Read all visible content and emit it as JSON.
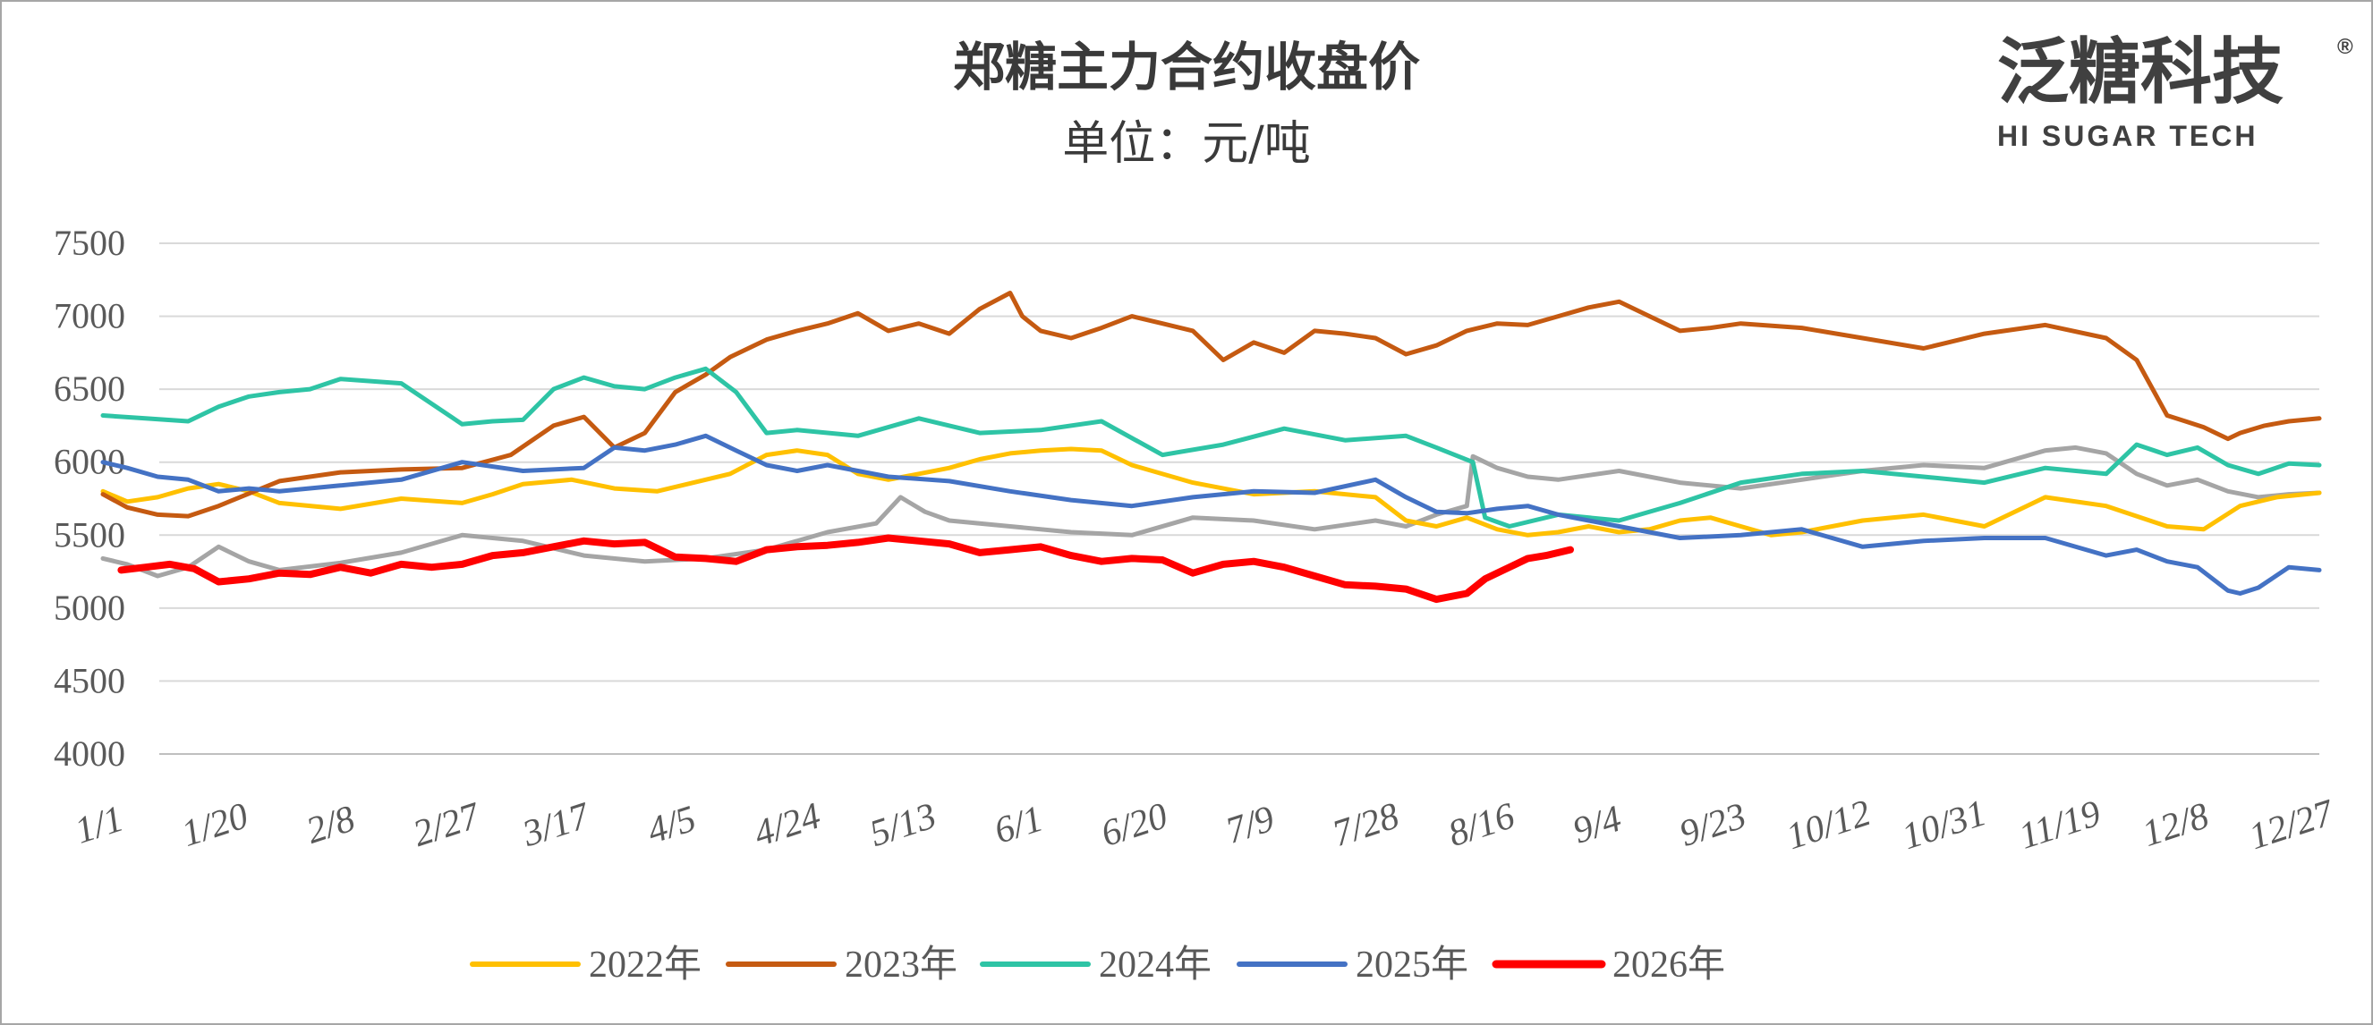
{
  "logo": {
    "cn": "泛糖科技",
    "en": "HI SUGAR TECH",
    "mark": "®"
  },
  "chart_data": {
    "type": "line",
    "title": "郑糖主力合约收盘价",
    "subtitle": "单位：元/吨",
    "xlabel": "",
    "ylabel": "",
    "ylim": [
      4000,
      7500
    ],
    "yticks": [
      4000,
      4500,
      5000,
      5500,
      6000,
      6500,
      7000,
      7500
    ],
    "xlim": [
      1,
      365
    ],
    "grid": true,
    "legend_position": "bottom",
    "x_ticks": [
      {
        "label": "1/1",
        "day": 1
      },
      {
        "label": "1/20",
        "day": 20
      },
      {
        "label": "2/8",
        "day": 39
      },
      {
        "label": "2/27",
        "day": 58
      },
      {
        "label": "3/17",
        "day": 76
      },
      {
        "label": "4/5",
        "day": 95
      },
      {
        "label": "4/24",
        "day": 114
      },
      {
        "label": "5/13",
        "day": 133
      },
      {
        "label": "6/1",
        "day": 152
      },
      {
        "label": "6/20",
        "day": 171
      },
      {
        "label": "7/9",
        "day": 190
      },
      {
        "label": "7/28",
        "day": 209
      },
      {
        "label": "8/16",
        "day": 228
      },
      {
        "label": "9/4",
        "day": 247
      },
      {
        "label": "9/23",
        "day": 266
      },
      {
        "label": "10/12",
        "day": 285
      },
      {
        "label": "10/31",
        "day": 304
      },
      {
        "label": "11/19",
        "day": 323
      },
      {
        "label": "12/8",
        "day": 342
      },
      {
        "label": "12/27",
        "day": 361
      }
    ],
    "series": [
      {
        "name": "2022年",
        "color": "#ffc000",
        "x": [
          1,
          5,
          10,
          15,
          20,
          25,
          30,
          40,
          50,
          60,
          65,
          70,
          78,
          85,
          92,
          98,
          104,
          110,
          115,
          120,
          125,
          130,
          135,
          140,
          145,
          150,
          155,
          160,
          165,
          170,
          180,
          190,
          200,
          210,
          215,
          220,
          225,
          230,
          235,
          240,
          245,
          250,
          255,
          260,
          265,
          270,
          275,
          280,
          290,
          300,
          310,
          320,
          330,
          340,
          346,
          352,
          358,
          365
        ],
        "values": [
          5800,
          5730,
          5760,
          5820,
          5850,
          5800,
          5720,
          5680,
          5750,
          5720,
          5780,
          5850,
          5880,
          5820,
          5800,
          5860,
          5920,
          6050,
          6080,
          6050,
          5920,
          5880,
          5920,
          5960,
          6020,
          6060,
          6080,
          6090,
          6080,
          5980,
          5860,
          5780,
          5800,
          5760,
          5600,
          5560,
          5620,
          5540,
          5500,
          5520,
          5560,
          5520,
          5540,
          5600,
          5620,
          5560,
          5500,
          5520,
          5600,
          5640,
          5560,
          5760,
          5700,
          5560,
          5540,
          5700,
          5760,
          5790
        ]
      },
      {
        "name": "2023年",
        "color": "#c55a11",
        "x": [
          1,
          5,
          10,
          15,
          20,
          30,
          40,
          50,
          60,
          68,
          75,
          80,
          85,
          90,
          95,
          100,
          104,
          110,
          115,
          120,
          125,
          130,
          135,
          140,
          145,
          150,
          152,
          155,
          160,
          165,
          170,
          175,
          180,
          185,
          190,
          195,
          200,
          205,
          210,
          215,
          220,
          225,
          230,
          235,
          240,
          245,
          250,
          255,
          260,
          265,
          270,
          280,
          290,
          300,
          310,
          320,
          330,
          335,
          340,
          343,
          346,
          350,
          352,
          356,
          360,
          365
        ],
        "values": [
          5780,
          5690,
          5640,
          5630,
          5700,
          5870,
          5930,
          5950,
          5960,
          6050,
          6250,
          6310,
          6100,
          6200,
          6480,
          6600,
          6720,
          6840,
          6900,
          6950,
          7020,
          6900,
          6950,
          6880,
          7050,
          7160,
          7000,
          6900,
          6850,
          6920,
          7000,
          6950,
          6900,
          6700,
          6820,
          6750,
          6900,
          6880,
          6850,
          6740,
          6800,
          6900,
          6950,
          6940,
          7000,
          7060,
          7100,
          7000,
          6900,
          6920,
          6950,
          6920,
          6850,
          6780,
          6880,
          6940,
          6850,
          6700,
          6320,
          6280,
          6240,
          6160,
          6200,
          6250,
          6280,
          6300
        ]
      },
      {
        "name": "2024年",
        "color": "#2ec4a5",
        "x": [
          1,
          8,
          15,
          20,
          25,
          30,
          35,
          40,
          50,
          60,
          65,
          70,
          75,
          80,
          85,
          90,
          95,
          100,
          105,
          110,
          115,
          125,
          135,
          145,
          155,
          165,
          175,
          185,
          195,
          205,
          215,
          220,
          226,
          228,
          232,
          240,
          250,
          260,
          270,
          280,
          290,
          300,
          310,
          320,
          330,
          335,
          340,
          345,
          350,
          355,
          360,
          365
        ],
        "values": [
          6320,
          6300,
          6280,
          6380,
          6450,
          6480,
          6500,
          6570,
          6540,
          6260,
          6280,
          6290,
          6500,
          6580,
          6520,
          6500,
          6580,
          6640,
          6480,
          6200,
          6220,
          6180,
          6300,
          6200,
          6220,
          6280,
          6050,
          6120,
          6230,
          6150,
          6180,
          6100,
          6000,
          5620,
          5560,
          5640,
          5600,
          5720,
          5860,
          5920,
          5940,
          5900,
          5860,
          5960,
          5920,
          6120,
          6050,
          6100,
          5980,
          5920,
          5990,
          5980
        ]
      },
      {
        "name": "2025年",
        "color": "#4472c4",
        "x": [
          1,
          5,
          10,
          15,
          20,
          25,
          30,
          40,
          50,
          60,
          70,
          80,
          85,
          90,
          95,
          100,
          105,
          110,
          115,
          120,
          130,
          140,
          150,
          160,
          170,
          180,
          190,
          200,
          210,
          215,
          220,
          225,
          230,
          235,
          240,
          250,
          260,
          270,
          280,
          290,
          300,
          310,
          320,
          330,
          335,
          340,
          345,
          350,
          352,
          355,
          360,
          365
        ],
        "values": [
          6000,
          5960,
          5900,
          5880,
          5800,
          5820,
          5800,
          5840,
          5880,
          6000,
          5940,
          5960,
          6100,
          6080,
          6120,
          6180,
          6080,
          5980,
          5940,
          5980,
          5900,
          5870,
          5800,
          5740,
          5700,
          5760,
          5800,
          5790,
          5880,
          5760,
          5660,
          5650,
          5680,
          5700,
          5640,
          5560,
          5480,
          5500,
          5540,
          5420,
          5460,
          5480,
          5480,
          5360,
          5400,
          5320,
          5280,
          5120,
          5100,
          5140,
          5280,
          5260
        ]
      },
      {
        "name": "2026年",
        "color": "#ff0000",
        "x": [
          4,
          8,
          12,
          16,
          20,
          25,
          30,
          35,
          40,
          45,
          50,
          55,
          60,
          65,
          70,
          75,
          80,
          85,
          90,
          95,
          100,
          105,
          110,
          115,
          120,
          125,
          130,
          135,
          140,
          145,
          150,
          155,
          160,
          165,
          170,
          175,
          180,
          185,
          190,
          195,
          200,
          205,
          210,
          215,
          220,
          225,
          228,
          232,
          235,
          238,
          242
        ],
        "values": [
          5260,
          5280,
          5300,
          5270,
          5180,
          5200,
          5240,
          5230,
          5280,
          5240,
          5300,
          5280,
          5300,
          5360,
          5380,
          5420,
          5460,
          5440,
          5450,
          5350,
          5340,
          5320,
          5400,
          5420,
          5430,
          5450,
          5480,
          5460,
          5440,
          5380,
          5400,
          5420,
          5360,
          5320,
          5340,
          5330,
          5240,
          5300,
          5320,
          5280,
          5220,
          5160,
          5150,
          5130,
          5060,
          5100,
          5200,
          5280,
          5340,
          5360,
          5400
        ]
      },
      {
        "name": "",
        "color": "#a5a5a5",
        "x": [
          1,
          5,
          10,
          15,
          20,
          25,
          30,
          40,
          50,
          60,
          70,
          80,
          90,
          100,
          110,
          120,
          128,
          132,
          136,
          140,
          150,
          160,
          170,
          180,
          190,
          200,
          210,
          215,
          220,
          225,
          226,
          230,
          235,
          240,
          250,
          260,
          270,
          280,
          290,
          300,
          310,
          320,
          325,
          330,
          335,
          340,
          345,
          350,
          355,
          360,
          365
        ],
        "values": [
          5340,
          5300,
          5220,
          5280,
          5420,
          5320,
          5260,
          5310,
          5380,
          5500,
          5460,
          5360,
          5320,
          5340,
          5400,
          5520,
          5580,
          5760,
          5660,
          5600,
          5560,
          5520,
          5500,
          5620,
          5600,
          5540,
          5600,
          5560,
          5640,
          5700,
          6040,
          5960,
          5900,
          5880,
          5940,
          5860,
          5820,
          5880,
          5940,
          5980,
          5960,
          6080,
          6100,
          6060,
          5920,
          5840,
          5880,
          5800,
          5760,
          5780,
          5790
        ]
      }
    ]
  }
}
